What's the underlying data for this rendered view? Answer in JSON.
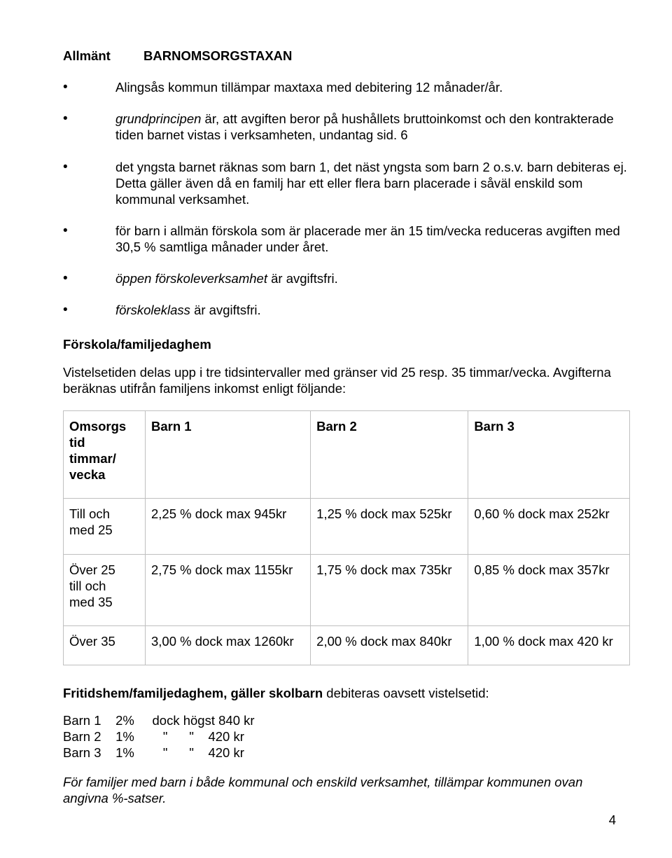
{
  "title": "BARNOMSORGSTAXAN",
  "section1_heading": "Allmänt",
  "bullets": [
    {
      "text": "Alingsås kommun tillämpar maxtaxa med debitering 12 månader/år."
    },
    {
      "html": "<span class=\"italic\">grundprincipen</span> är, att avgiften beror på hushållets bruttoinkomst och den kontrakterade tiden barnet vistas i verksamheten, undantag sid. 6"
    },
    {
      "text": "det yngsta barnet räknas som barn 1, det näst yngsta som barn 2 o.s.v. barn debiteras ej. Detta gäller även då en familj har ett eller flera barn placerade i såväl enskild som kommunal verksamhet."
    },
    {
      "text": "för barn i allmän förskola som är placerade mer än 15 tim/vecka reduceras avgiften med 30,5 % samtliga månader under året."
    },
    {
      "html": "<span class=\"italic\">öppen förskoleverksamhet</span> är avgiftsfri."
    },
    {
      "html": "<span class=\"italic\">förskoleklass</span> är avgiftsfri."
    }
  ],
  "section2_heading": "Förskola/familjedaghem",
  "section2_body": "Vistelsetiden delas upp i tre tidsintervaller med gränser vid 25 resp. 35 timmar/vecka. Avgifterna beräknas utifrån familjens inkomst enligt följande:",
  "table": {
    "columns": [
      "Omsorgs tid timmar/ vecka",
      "Barn 1",
      "Barn 2",
      "Barn 3"
    ],
    "col0_lines": [
      "Omsorgs",
      "tid",
      "timmar/",
      "vecka"
    ],
    "rows": [
      {
        "c0_lines": [
          "Till och",
          "med 25"
        ],
        "c1": "2,25 % dock max 945kr",
        "c2": "1,25 % dock max 525kr",
        "c3": "0,60 % dock max 252kr"
      },
      {
        "c0_lines": [
          "Över 25",
          "till och",
          "med 35"
        ],
        "c1": "2,75 % dock max 1155kr",
        "c2": "1,75 % dock max 735kr",
        "c3": "0,85 % dock max 357kr"
      },
      {
        "c0_lines": [
          "Över 35"
        ],
        "c1": "3,00 % dock max 1260kr",
        "c2": "2,00 % dock max 840kr",
        "c3": "1,00 % dock max 420 kr"
      }
    ],
    "border_color": "#bfbfbf"
  },
  "frit_heading_bold": "Fritidshem/familjedaghem, gäller skolbarn",
  "frit_heading_rest": " debiteras oavsett vistelsetid:",
  "frit_rows": [
    "Barn 1    2%     dock högst 840 kr",
    "Barn 2    1%        \"      \"    420 kr",
    "Barn 3    1%        \"      \"    420 kr"
  ],
  "footer_note": "För familjer med barn i både kommunal och enskild verksamhet, tillämpar kommunen ovan angivna %-satser.",
  "page_number": "4"
}
